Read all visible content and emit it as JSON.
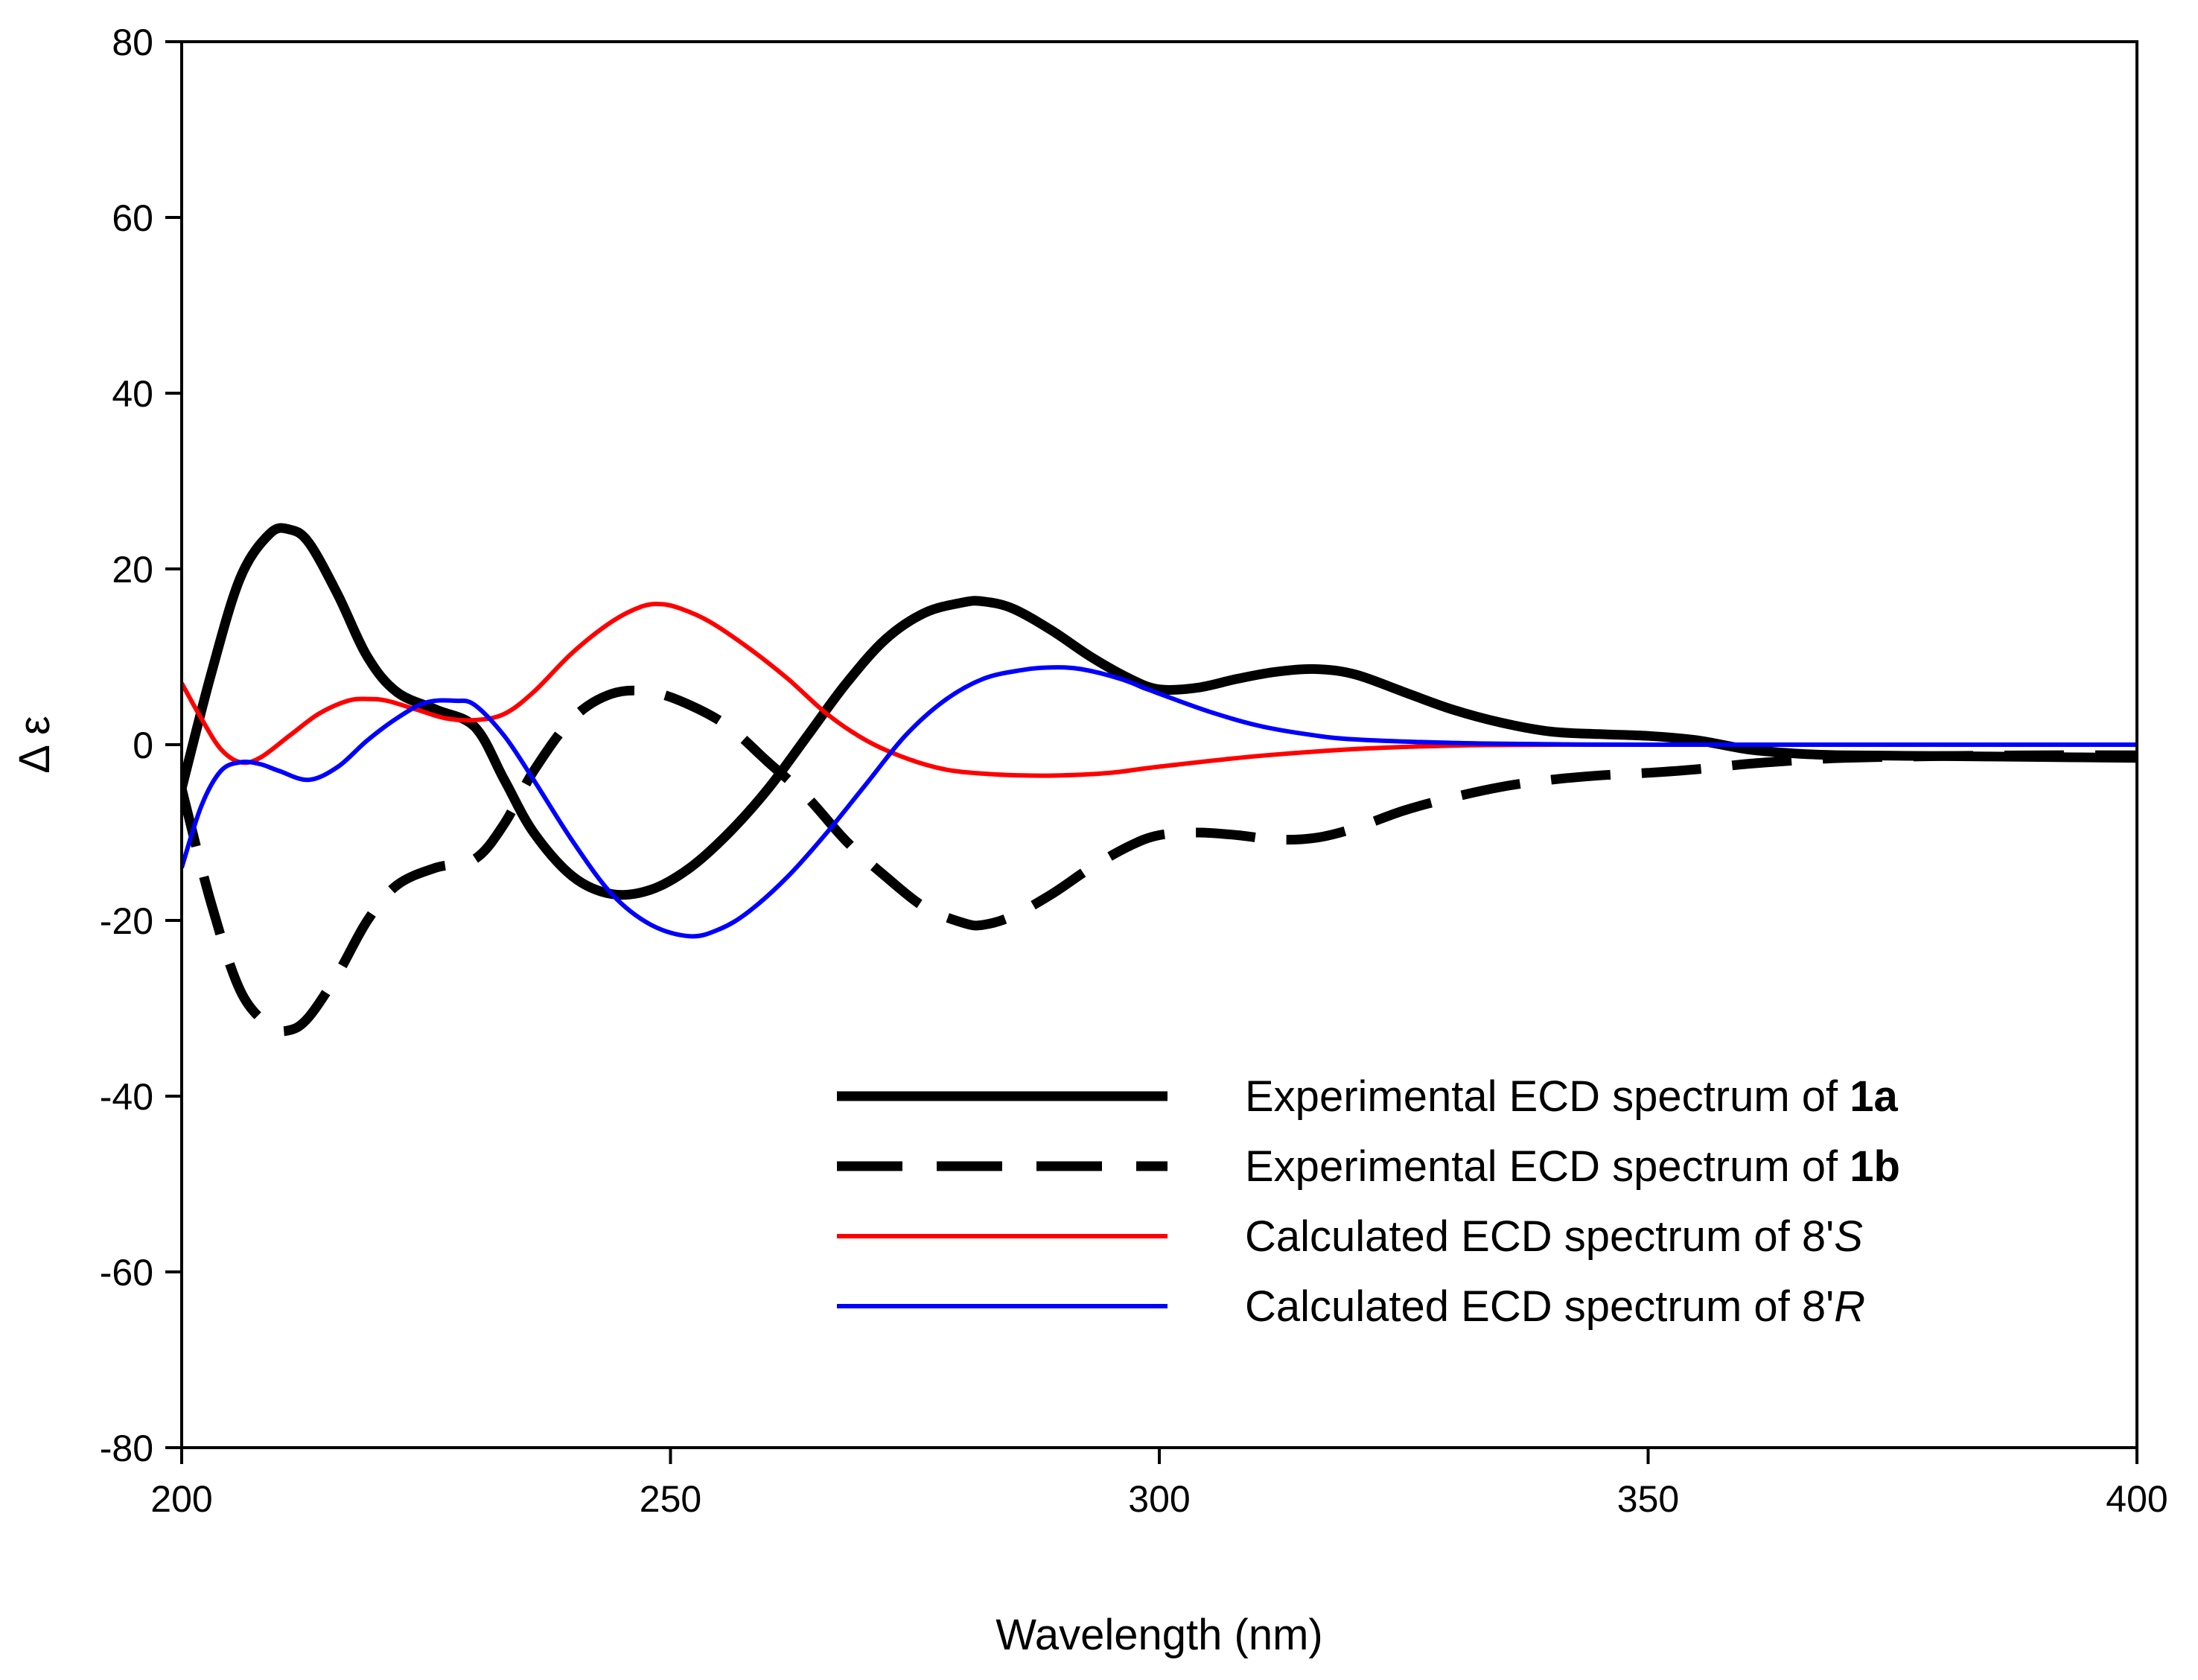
{
  "chart_data": {
    "type": "line",
    "title": "",
    "xlabel": "Wavelength (nm)",
    "ylabel": "Δ ε",
    "xlim": [
      200,
      400
    ],
    "ylim": [
      -80,
      80
    ],
    "xticks": [
      "200",
      "250",
      "300",
      "350",
      "400"
    ],
    "yticks": [
      "80",
      "60",
      "40",
      "20",
      "0",
      "-20",
      "-40",
      "-60",
      "-80"
    ],
    "grid": false,
    "legend_position": "lower-right",
    "series": [
      {
        "name": "Experimental ECD spectrum of 1a",
        "legend_prefix": "Experimental ECD spectrum of ",
        "legend_emph": "1a",
        "emph_style": "bold",
        "color": "#000000",
        "style": "solid",
        "weight": "thick",
        "x": [
          200,
          203,
          206,
          209,
          211,
          213,
          216,
          219,
          222,
          226,
          230,
          233,
          236,
          240,
          244,
          248,
          252,
          256,
          260,
          264,
          268,
          272,
          276,
          280,
          282,
          285,
          289,
          293,
          297,
          300,
          304,
          308,
          312,
          316,
          320,
          325,
          330,
          335,
          340,
          345,
          350,
          355,
          360,
          365,
          370,
          380,
          390,
          400
        ],
        "y": [
          -5,
          8,
          19,
          24,
          24.5,
          23,
          17,
          10,
          6,
          4,
          2,
          -4,
          -10,
          -15,
          -17,
          -16.5,
          -14,
          -10,
          -5,
          1,
          7,
          12,
          15,
          16.2,
          16.3,
          15.5,
          13,
          10,
          7.5,
          6.3,
          6.5,
          7.5,
          8.3,
          8.6,
          8,
          6,
          4,
          2.5,
          1.5,
          1.2,
          1,
          0.5,
          -0.5,
          -1,
          -1.2,
          -1.3,
          -1.4,
          -1.5
        ]
      },
      {
        "name": "Experimental ECD spectrum of 1b",
        "legend_prefix": "Experimental ECD spectrum of ",
        "legend_emph": "1b",
        "emph_style": "bold",
        "color": "#000000",
        "style": "dashed",
        "weight": "thick",
        "x": [
          200,
          203,
          206,
          209,
          211,
          213,
          216,
          219,
          222,
          226,
          230,
          233,
          236,
          240,
          244,
          248,
          252,
          256,
          260,
          264,
          268,
          272,
          276,
          280,
          282,
          285,
          289,
          293,
          297,
          300,
          304,
          308,
          312,
          316,
          320,
          325,
          330,
          335,
          340,
          345,
          350,
          355,
          360,
          365,
          370,
          380,
          390,
          400
        ],
        "y": [
          -5,
          -18,
          -28,
          -32,
          -32.5,
          -31,
          -26,
          -20,
          -16,
          -14,
          -13,
          -9,
          -3,
          3,
          5.8,
          6,
          4.5,
          2,
          -2,
          -6,
          -11,
          -15,
          -18.5,
          -20.3,
          -20.5,
          -19.5,
          -17,
          -14,
          -11.5,
          -10.3,
          -10,
          -10.3,
          -10.8,
          -10.6,
          -9.5,
          -7.5,
          -6,
          -4.8,
          -4,
          -3.5,
          -3.2,
          -2.8,
          -2.2,
          -1.8,
          -1.5,
          -1.3,
          -1.2,
          -1.2
        ]
      },
      {
        "name": "Calculated ECD spectrum of 8'S",
        "legend_prefix": "Calculated ECD spectrum of 8'",
        "legend_emph": "S",
        "emph_style": "italic",
        "color": "#ff0000",
        "style": "solid",
        "weight": "thin",
        "x": [
          200,
          202,
          204,
          206,
          208,
          211,
          214,
          217,
          219,
          221,
          224,
          227,
          230,
          233,
          236,
          240,
          244,
          247,
          249,
          251,
          254,
          258,
          262,
          266,
          270,
          274,
          278,
          282,
          286,
          290,
          295,
          300,
          310,
          320,
          330,
          340,
          350,
          400
        ],
        "y": [
          7,
          3,
          -0.5,
          -2,
          -1.5,
          1,
          3.5,
          5,
          5.2,
          5,
          4,
          3,
          2.8,
          3.5,
          6,
          10.5,
          14,
          15.7,
          16,
          15.5,
          14,
          11,
          7.5,
          3.5,
          0.5,
          -1.5,
          -2.8,
          -3.3,
          -3.5,
          -3.5,
          -3.2,
          -2.5,
          -1.3,
          -0.5,
          -0.1,
          0,
          0,
          0
        ]
      },
      {
        "name": "Calculated ECD spectrum of 8'R",
        "legend_prefix": "Calculated ECD spectrum of 8'",
        "legend_emph": "R",
        "emph_style": "italic",
        "color": "#0000ff",
        "style": "solid",
        "weight": "thin",
        "x": [
          200,
          202,
          204,
          206,
          208,
          210,
          213,
          216,
          219,
          222,
          225,
          228,
          230,
          233,
          236,
          240,
          244,
          248,
          252,
          255,
          258,
          262,
          266,
          270,
          274,
          278,
          282,
          286,
          289,
          292,
          296,
          300,
          305,
          310,
          315,
          320,
          330,
          340,
          350,
          400
        ],
        "y": [
          -14,
          -7,
          -3,
          -2,
          -2.2,
          -3,
          -4,
          -2.5,
          0.5,
          3,
          4.8,
          5,
          4.5,
          1,
          -4,
          -11,
          -17,
          -20.5,
          -21.8,
          -21,
          -19,
          -15,
          -10,
          -4.5,
          1,
          5,
          7.5,
          8.5,
          8.8,
          8.6,
          7.5,
          5.8,
          3.8,
          2.2,
          1.2,
          0.6,
          0.2,
          0.05,
          0,
          0
        ]
      }
    ]
  }
}
